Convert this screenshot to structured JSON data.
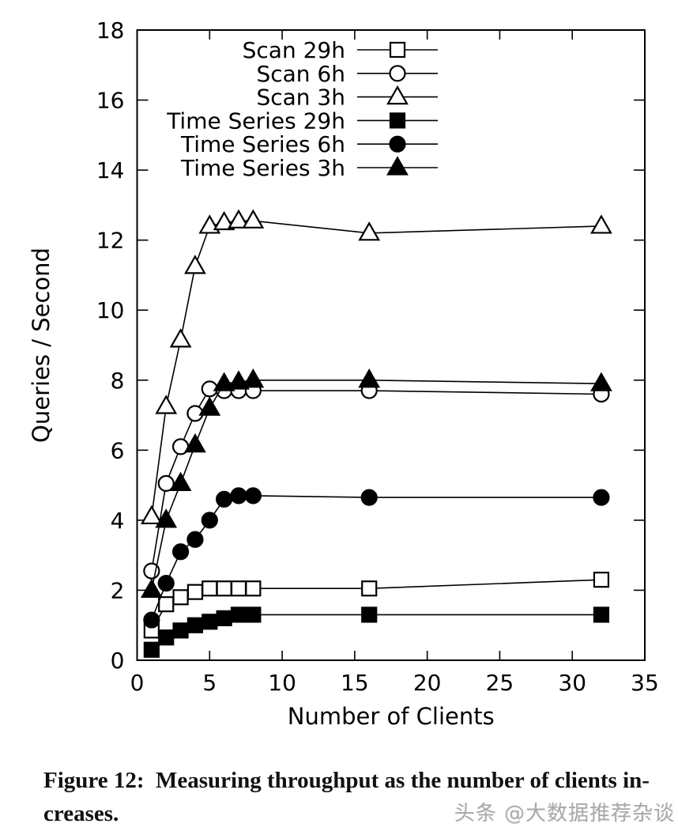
{
  "figure_caption": {
    "line1": "Figure 12:  Measuring throughput as the number of clients in-",
    "line2": "creases."
  },
  "watermark": {
    "text": "头条 @大数据推荐杂谈",
    "color": "#a9a9a9"
  },
  "chart_data": {
    "type": "line",
    "title": "",
    "xlabel": "Number of Clients",
    "ylabel": "Queries / Second",
    "xlim": [
      0,
      35
    ],
    "ylim": [
      0,
      18
    ],
    "xticks": [
      0,
      5,
      10,
      15,
      20,
      25,
      30,
      35
    ],
    "yticks": [
      0,
      2,
      4,
      6,
      8,
      10,
      12,
      14,
      16,
      18
    ],
    "grid": false,
    "legend_position": "inside-top-center",
    "line_color": "#000000",
    "x": [
      1,
      2,
      3,
      4,
      5,
      6,
      7,
      8,
      16,
      32
    ],
    "series": [
      {
        "name": "Scan 29h",
        "marker": "open-square",
        "values": [
          0.85,
          1.6,
          1.8,
          1.95,
          2.05,
          2.05,
          2.05,
          2.05,
          2.05,
          2.3
        ]
      },
      {
        "name": "Scan 6h",
        "marker": "open-circle",
        "values": [
          2.55,
          5.05,
          6.1,
          7.05,
          7.75,
          7.7,
          7.7,
          7.7,
          7.7,
          7.6
        ]
      },
      {
        "name": "Scan 3h",
        "marker": "open-triangle",
        "values": [
          4.1,
          7.25,
          9.15,
          11.25,
          12.4,
          12.5,
          12.55,
          12.55,
          12.2,
          12.4
        ]
      },
      {
        "name": "Time Series 29h",
        "marker": "filled-square",
        "values": [
          0.3,
          0.65,
          0.85,
          1.0,
          1.1,
          1.2,
          1.3,
          1.3,
          1.3,
          1.3
        ]
      },
      {
        "name": "Time Series 6h",
        "marker": "filled-circle",
        "values": [
          1.15,
          2.2,
          3.1,
          3.45,
          4.0,
          4.6,
          4.7,
          4.7,
          4.65,
          4.65
        ]
      },
      {
        "name": "Time Series 3h",
        "marker": "filled-triangle",
        "values": [
          2.0,
          4.0,
          5.05,
          6.15,
          7.2,
          7.9,
          7.95,
          8.0,
          8.0,
          7.9
        ]
      }
    ]
  }
}
